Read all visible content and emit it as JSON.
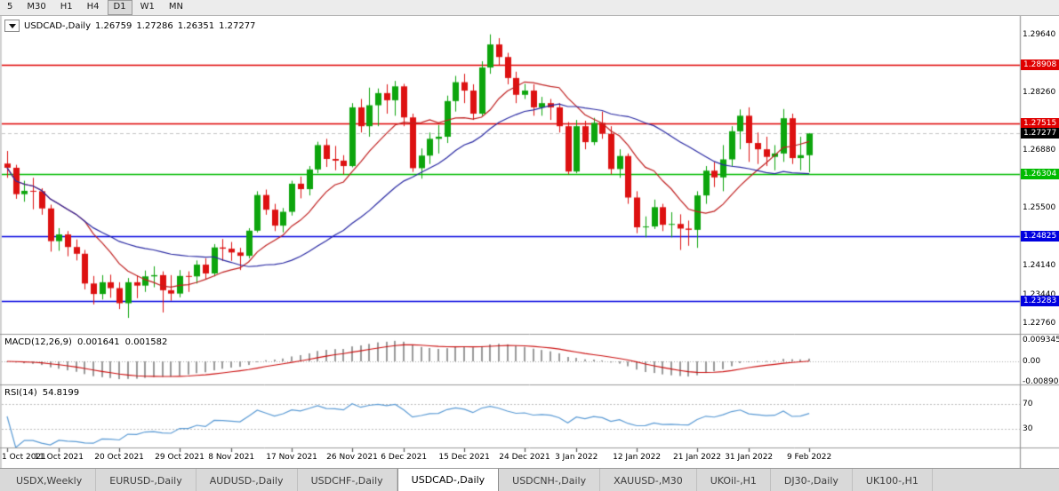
{
  "toolbar": {
    "timeframes": [
      "5",
      "M30",
      "H1",
      "H4",
      "D1",
      "W1",
      "MN"
    ],
    "active": "D1"
  },
  "chart": {
    "legend": {
      "symbol": "USDCAD-,Daily",
      "open": "1.26759",
      "high": "1.27286",
      "low": "1.26351",
      "close": "1.27277"
    },
    "colors": {
      "bull": "#0da50d",
      "bear": "#dd1111",
      "ma_fast": "#c02020",
      "ma_slow": "#2929a3",
      "histogram": "#9a9a9a",
      "macd_signal": "#cc1111",
      "rsi": "#5b9bd5",
      "separator": "#9a9a9a"
    },
    "moving_averages": [
      {
        "period": 10,
        "color": "#c02020"
      },
      {
        "period": 25,
        "color": "#2929a3"
      }
    ],
    "hlines": [
      {
        "price": 1.28908,
        "label": "1.28908",
        "color": "#e00000"
      },
      {
        "price": 1.27515,
        "label": "1.27515",
        "color": "#e00000"
      },
      {
        "price": 1.26304,
        "label": "1.26304",
        "color": "#00bb00"
      },
      {
        "price": 1.24825,
        "label": "1.24825",
        "color": "#0000e0"
      },
      {
        "price": 1.23283,
        "label": "1.23283",
        "color": "#0000e0"
      }
    ],
    "current_price": {
      "price": 1.27277,
      "label": "1.27277",
      "color": "#000000"
    },
    "price_axis_labels": [
      {
        "value": 1.2964,
        "label": "1.29640"
      },
      {
        "value": 1.2826,
        "label": "1.28260"
      },
      {
        "value": 1.2688,
        "label": "1.26880"
      },
      {
        "value": 1.255,
        "label": "1.25500"
      },
      {
        "value": 1.2414,
        "label": "1.24140"
      },
      {
        "value": 1.2344,
        "label": "1.23440"
      },
      {
        "value": 1.2276,
        "label": "1.22760"
      }
    ]
  },
  "indicators": {
    "macd": {
      "label": "MACD(12,26,9)",
      "value_macd": "0.001641",
      "value_signal": "0.001582",
      "fast": 12,
      "slow": 26,
      "signal": 9,
      "axis_labels": [
        {
          "value": 0.009345,
          "label": "0.009345"
        },
        {
          "value": 0,
          "label": "0.00"
        },
        {
          "value": -0.0089,
          "label": "-0.00890"
        }
      ]
    },
    "rsi": {
      "label": "RSI(14)",
      "value": "54.8199",
      "period": 14,
      "axis_labels": [
        {
          "value": 70,
          "label": "70"
        },
        {
          "value": 30,
          "label": "30"
        }
      ]
    }
  },
  "tabbar": {
    "tabs": [
      "USDX,Weekly",
      "EURUSD-,Daily",
      "AUDUSD-,Daily",
      "USDCHF-,Daily",
      "USDCAD-,Daily",
      "USDCNH-,Daily",
      "XAUUSD-,M30",
      "UKOil-,H1",
      "DJ30-,Daily",
      "UK100-,H1"
    ],
    "active_index": 4
  },
  "chart_data": {
    "type": "candlestick",
    "symbol": "USDCAD",
    "timeframe": "Daily",
    "title": "USDCAD-,Daily",
    "current_ohlc": {
      "open": 1.26759,
      "high": 1.27286,
      "low": 1.26351,
      "close": 1.27277
    },
    "y_axis": {
      "top": 1.301,
      "bottom": 1.225
    },
    "x_labels": [
      {
        "i": 0,
        "t": "1 Oct 2021"
      },
      {
        "i": 6,
        "t": "11 Oct 2021"
      },
      {
        "i": 13,
        "t": "20 Oct 2021"
      },
      {
        "i": 20,
        "t": "29 Oct 2021"
      },
      {
        "i": 26,
        "t": "8 Nov 2021"
      },
      {
        "i": 33,
        "t": "17 Nov 2021"
      },
      {
        "i": 40,
        "t": "26 Nov 2021"
      },
      {
        "i": 46,
        "t": "6 Dec 2021"
      },
      {
        "i": 53,
        "t": "15 Dec 2021"
      },
      {
        "i": 60,
        "t": "24 Dec 2021"
      },
      {
        "i": 66,
        "t": "3 Jan 2022"
      },
      {
        "i": 73,
        "t": "12 Jan 2022"
      },
      {
        "i": 80,
        "t": "21 Jan 2022"
      },
      {
        "i": 86,
        "t": "31 Jan 2022"
      },
      {
        "i": 93,
        "t": "9 Feb 2022"
      }
    ],
    "candles": [
      [
        1.2656,
        1.2686,
        1.2622,
        1.2646
      ],
      [
        1.2646,
        1.2653,
        1.2572,
        1.2583
      ],
      [
        1.2583,
        1.2615,
        1.2565,
        1.2591
      ],
      [
        1.2591,
        1.2622,
        1.2547,
        1.259
      ],
      [
        1.259,
        1.2597,
        1.2534,
        1.2549
      ],
      [
        1.2549,
        1.2558,
        1.2446,
        1.2471
      ],
      [
        1.2471,
        1.2502,
        1.2448,
        1.2487
      ],
      [
        1.2487,
        1.2495,
        1.2435,
        1.2457
      ],
      [
        1.2457,
        1.2475,
        1.2425,
        1.2441
      ],
      [
        1.2441,
        1.245,
        1.2356,
        1.237
      ],
      [
        1.237,
        1.2388,
        1.232,
        1.2345
      ],
      [
        1.2345,
        1.239,
        1.2332,
        1.2373
      ],
      [
        1.2373,
        1.2391,
        1.2336,
        1.2359
      ],
      [
        1.2359,
        1.2373,
        1.2309,
        1.2323
      ],
      [
        1.2323,
        1.2383,
        1.2288,
        1.2373
      ],
      [
        1.2373,
        1.2389,
        1.2335,
        1.2365
      ],
      [
        1.2365,
        1.2401,
        1.235,
        1.2387
      ],
      [
        1.2387,
        1.2411,
        1.2361,
        1.239
      ],
      [
        1.239,
        1.2399,
        1.2301,
        1.2354
      ],
      [
        1.2354,
        1.239,
        1.2329,
        1.2346
      ],
      [
        1.2346,
        1.2402,
        1.2337,
        1.2388
      ],
      [
        1.2388,
        1.2399,
        1.235,
        1.2387
      ],
      [
        1.2387,
        1.2425,
        1.237,
        1.2415
      ],
      [
        1.2415,
        1.243,
        1.238,
        1.2394
      ],
      [
        1.2394,
        1.2464,
        1.2387,
        1.2456
      ],
      [
        1.2456,
        1.2476,
        1.2424,
        1.2453
      ],
      [
        1.2453,
        1.2469,
        1.2424,
        1.2444
      ],
      [
        1.2444,
        1.2455,
        1.2402,
        1.2436
      ],
      [
        1.2436,
        1.2502,
        1.243,
        1.2496
      ],
      [
        1.2496,
        1.259,
        1.2492,
        1.2581
      ],
      [
        1.2581,
        1.2594,
        1.2534,
        1.2546
      ],
      [
        1.2546,
        1.256,
        1.2495,
        1.2508
      ],
      [
        1.2508,
        1.255,
        1.2492,
        1.2541
      ],
      [
        1.2541,
        1.2615,
        1.2532,
        1.2608
      ],
      [
        1.2608,
        1.2625,
        1.2573,
        1.2595
      ],
      [
        1.2595,
        1.265,
        1.258,
        1.2642
      ],
      [
        1.2642,
        1.2708,
        1.2633,
        1.27
      ],
      [
        1.27,
        1.2715,
        1.2648,
        1.2667
      ],
      [
        1.2667,
        1.2698,
        1.264,
        1.2663
      ],
      [
        1.2663,
        1.2676,
        1.263,
        1.265
      ],
      [
        1.265,
        1.28,
        1.2647,
        1.279
      ],
      [
        1.279,
        1.281,
        1.273,
        1.2745
      ],
      [
        1.2745,
        1.2837,
        1.272,
        1.2795
      ],
      [
        1.2795,
        1.2835,
        1.2745,
        1.2824
      ],
      [
        1.2824,
        1.2845,
        1.2775,
        1.2807
      ],
      [
        1.2807,
        1.2853,
        1.277,
        1.284
      ],
      [
        1.284,
        1.2846,
        1.2745,
        1.2766
      ],
      [
        1.2766,
        1.2775,
        1.2636,
        1.2645
      ],
      [
        1.2645,
        1.2692,
        1.262,
        1.2675
      ],
      [
        1.2675,
        1.273,
        1.2655,
        1.2715
      ],
      [
        1.2715,
        1.2748,
        1.268,
        1.272
      ],
      [
        1.272,
        1.2818,
        1.2705,
        1.2805
      ],
      [
        1.2805,
        1.2865,
        1.278,
        1.285
      ],
      [
        1.285,
        1.287,
        1.28,
        1.283
      ],
      [
        1.283,
        1.2845,
        1.276,
        1.2775
      ],
      [
        1.2775,
        1.29,
        1.277,
        1.2885
      ],
      [
        1.2885,
        1.2964,
        1.287,
        1.294
      ],
      [
        1.294,
        1.2955,
        1.289,
        1.291
      ],
      [
        1.291,
        1.292,
        1.2845,
        1.286
      ],
      [
        1.286,
        1.2875,
        1.28,
        1.282
      ],
      [
        1.282,
        1.2846,
        1.281,
        1.283
      ],
      [
        1.283,
        1.2845,
        1.277,
        1.279
      ],
      [
        1.279,
        1.2815,
        1.277,
        1.28
      ],
      [
        1.28,
        1.281,
        1.276,
        1.279
      ],
      [
        1.279,
        1.28,
        1.273,
        1.2745
      ],
      [
        1.2745,
        1.2755,
        1.263,
        1.2637
      ],
      [
        1.2637,
        1.276,
        1.2633,
        1.2745
      ],
      [
        1.2745,
        1.2758,
        1.269,
        1.2707
      ],
      [
        1.2707,
        1.2765,
        1.27,
        1.2753
      ],
      [
        1.2753,
        1.278,
        1.2715,
        1.2727
      ],
      [
        1.2727,
        1.2745,
        1.263,
        1.2643
      ],
      [
        1.2643,
        1.269,
        1.2622,
        1.2674
      ],
      [
        1.2674,
        1.268,
        1.256,
        1.2575
      ],
      [
        1.2575,
        1.259,
        1.249,
        1.2504
      ],
      [
        1.2504,
        1.253,
        1.248,
        1.2506
      ],
      [
        1.2506,
        1.257,
        1.25,
        1.2552
      ],
      [
        1.2552,
        1.256,
        1.2495,
        1.251
      ],
      [
        1.251,
        1.254,
        1.248,
        1.2512
      ],
      [
        1.2512,
        1.2535,
        1.245,
        1.2501
      ],
      [
        1.2501,
        1.252,
        1.246,
        1.2498
      ],
      [
        1.2498,
        1.259,
        1.2455,
        1.258
      ],
      [
        1.258,
        1.265,
        1.256,
        1.2639
      ],
      [
        1.2639,
        1.266,
        1.26,
        1.2623
      ],
      [
        1.2623,
        1.27,
        1.259,
        1.2666
      ],
      [
        1.2666,
        1.2745,
        1.265,
        1.2733
      ],
      [
        1.2733,
        1.2785,
        1.269,
        1.277
      ],
      [
        1.277,
        1.279,
        1.266,
        1.2705
      ],
      [
        1.2705,
        1.273,
        1.2655,
        1.269
      ],
      [
        1.269,
        1.272,
        1.265,
        1.2672
      ],
      [
        1.2672,
        1.27,
        1.264,
        1.268
      ],
      [
        1.268,
        1.2786,
        1.266,
        1.2764
      ],
      [
        1.2764,
        1.2775,
        1.2655,
        1.2669
      ],
      [
        1.2669,
        1.272,
        1.264,
        1.2676
      ],
      [
        1.26759,
        1.27286,
        1.26351,
        1.27277
      ]
    ]
  }
}
